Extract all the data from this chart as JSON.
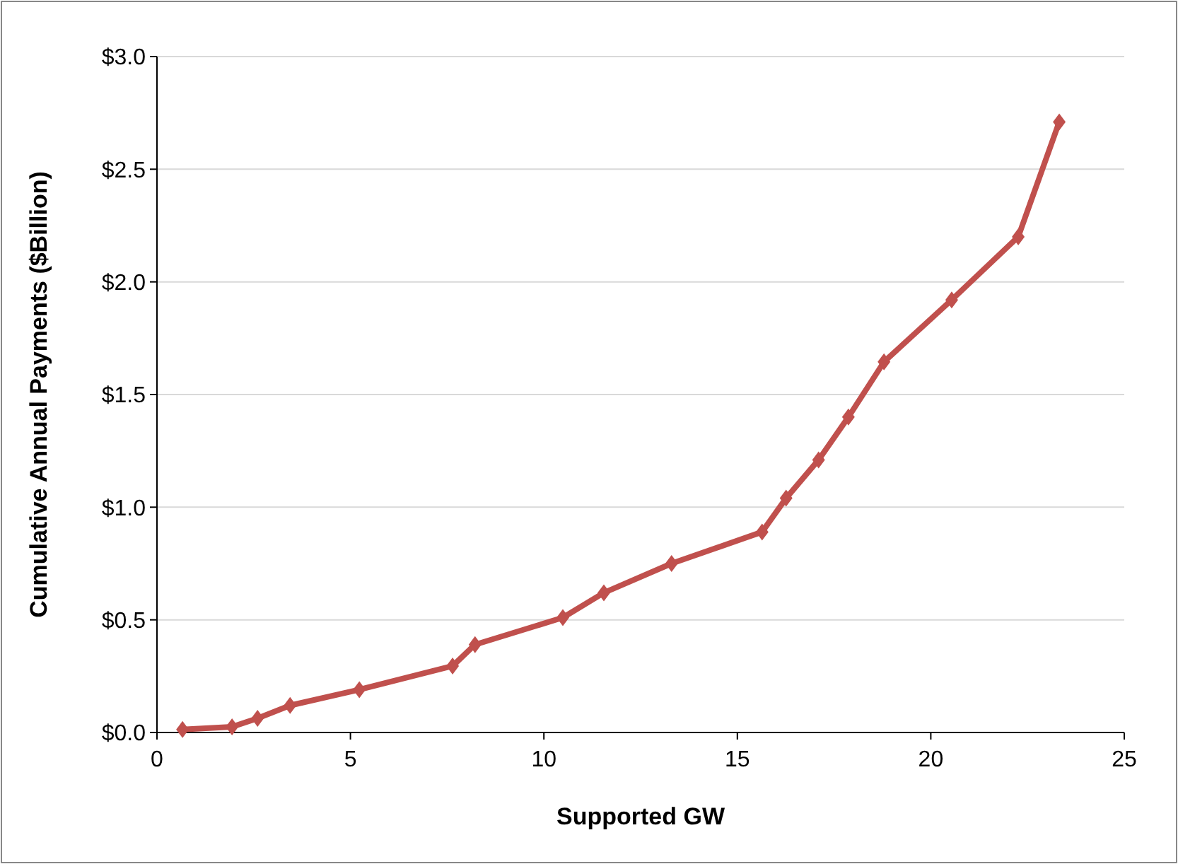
{
  "chart_data": {
    "type": "line",
    "xlabel": "Supported GW",
    "ylabel": "Cumulative Annual Payments ($Billion)",
    "x": [
      0.66,
      1.94,
      2.6,
      3.44,
      5.23,
      7.64,
      8.22,
      10.49,
      11.55,
      13.3,
      15.64,
      16.26,
      17.1,
      17.87,
      18.79,
      20.54,
      22.26,
      23.32
    ],
    "series": [
      {
        "color": "#c0504d",
        "values": [
          0.013,
          0.025,
          0.063,
          0.12,
          0.19,
          0.295,
          0.39,
          0.51,
          0.62,
          0.75,
          0.89,
          1.04,
          1.21,
          1.4,
          1.645,
          1.92,
          2.2,
          2.71
        ]
      }
    ],
    "xlim": [
      0,
      25
    ],
    "xticks": [
      0,
      5,
      10,
      15,
      20,
      25
    ],
    "ylim": [
      0,
      3
    ],
    "yticks": [
      {
        "value": 0,
        "label": "$0.0"
      },
      {
        "value": 0.5,
        "label": "$0.5"
      },
      {
        "value": 1,
        "label": "$1.0"
      },
      {
        "value": 1.5,
        "label": "$1.5"
      },
      {
        "value": 2,
        "label": "$2.0"
      },
      {
        "value": 2.5,
        "label": "$2.5"
      },
      {
        "value": 3,
        "label": "$3.0"
      }
    ],
    "grid": "y",
    "marker": "diamond",
    "line_style": "solid"
  }
}
